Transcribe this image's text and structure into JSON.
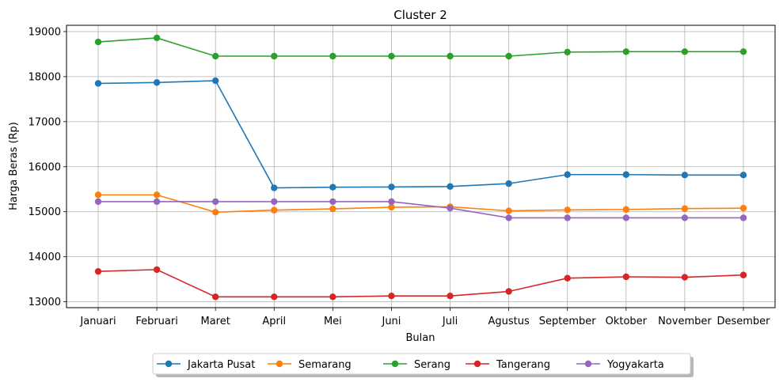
{
  "chart_data": {
    "type": "line",
    "title": "Cluster 2",
    "xlabel": "Bulan",
    "ylabel": "Harga Beras (Rp)",
    "categories": [
      "Januari",
      "Februari",
      "Maret",
      "April",
      "Mei",
      "Juni",
      "Juli",
      "Agustus",
      "September",
      "Oktober",
      "November",
      "Desember"
    ],
    "ylim": [
      12870,
      19140
    ],
    "yticks": [
      13000,
      14000,
      15000,
      16000,
      17000,
      18000,
      19000
    ],
    "grid": true,
    "legend_position": "bottom-center",
    "series": [
      {
        "name": "Jakarta Pusat",
        "color": "#1f77b4",
        "values": [
          17850,
          17870,
          17910,
          15530,
          15545,
          15550,
          15560,
          15625,
          15825,
          15825,
          15815,
          15815
        ]
      },
      {
        "name": "Semarang",
        "color": "#ff7f0e",
        "values": [
          15375,
          15375,
          14990,
          15035,
          15065,
          15100,
          15110,
          15020,
          15040,
          15050,
          15070,
          15080
        ]
      },
      {
        "name": "Serang",
        "color": "#2ca02c",
        "values": [
          18770,
          18860,
          18455,
          18455,
          18455,
          18455,
          18455,
          18455,
          18545,
          18555,
          18555,
          18555
        ]
      },
      {
        "name": "Tangerang",
        "color": "#d62728",
        "values": [
          13675,
          13715,
          13110,
          13110,
          13110,
          13130,
          13130,
          13230,
          13525,
          13555,
          13545,
          13595
        ]
      },
      {
        "name": "Yogyakarta",
        "color": "#9467bd",
        "values": [
          15225,
          15225,
          15225,
          15225,
          15225,
          15225,
          15080,
          14865,
          14865,
          14865,
          14865,
          14865
        ]
      }
    ]
  }
}
